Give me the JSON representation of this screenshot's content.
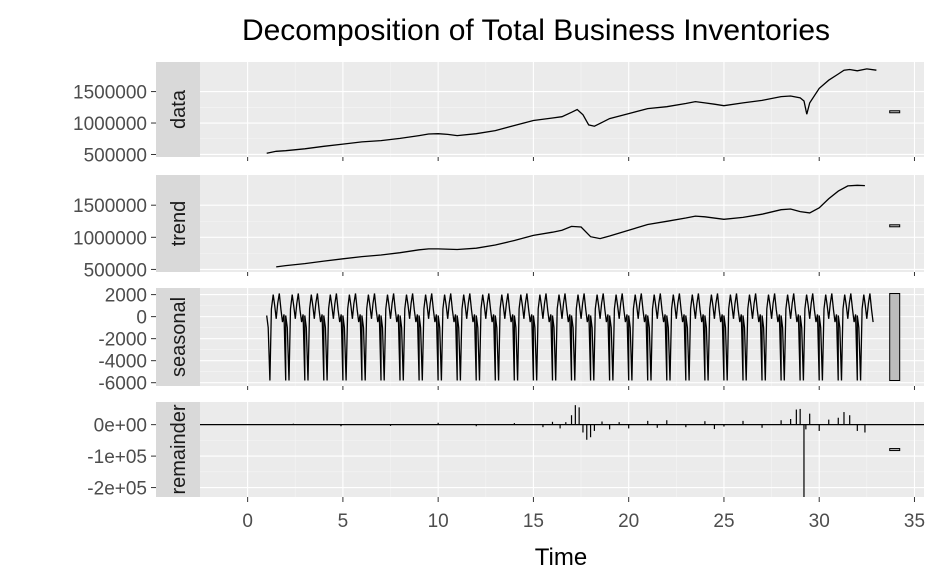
{
  "chart_data": {
    "type": "line",
    "title": "Decomposition of Total Business Inventories",
    "xlabel": "Time",
    "xlim": [
      -2.5,
      35.5
    ],
    "x_ticks": [
      "0",
      "5",
      "10",
      "15",
      "20",
      "25",
      "30",
      "35"
    ],
    "x_tick_values": [
      0,
      5,
      10,
      15,
      20,
      25,
      30,
      35
    ],
    "grid": true,
    "panels": [
      {
        "name": "data",
        "ylim": [
          460000,
          1970000
        ],
        "y_ticks": [
          "500000",
          "1000000",
          "1500000"
        ],
        "y_tick_values": [
          500000,
          1000000,
          1500000
        ],
        "range_bar": [
          1180000,
          1195000
        ],
        "x": [
          1.0,
          1.5,
          2.0,
          3.0,
          4.0,
          5.0,
          6.0,
          7.0,
          8.0,
          9.0,
          9.5,
          10.0,
          10.5,
          11.0,
          12.0,
          13.0,
          14.0,
          15.0,
          16.0,
          16.5,
          17.0,
          17.3,
          17.6,
          17.9,
          18.2,
          18.6,
          19.0,
          20.0,
          21.0,
          22.0,
          23.0,
          23.5,
          24.0,
          24.5,
          25.0,
          26.0,
          27.0,
          28.0,
          28.5,
          29.0,
          29.2,
          29.35,
          29.5,
          30.0,
          30.5,
          31.0,
          31.3,
          31.6,
          32.0,
          32.5,
          33.0
        ],
        "values": [
          520000,
          550000,
          560000,
          590000,
          630000,
          665000,
          700000,
          720000,
          755000,
          800000,
          825000,
          830000,
          820000,
          800000,
          830000,
          880000,
          960000,
          1040000,
          1080000,
          1100000,
          1170000,
          1215000,
          1130000,
          970000,
          950000,
          1010000,
          1070000,
          1150000,
          1230000,
          1260000,
          1310000,
          1340000,
          1320000,
          1300000,
          1275000,
          1320000,
          1360000,
          1420000,
          1430000,
          1400000,
          1350000,
          1140000,
          1320000,
          1550000,
          1680000,
          1780000,
          1840000,
          1850000,
          1830000,
          1860000,
          1840000
        ]
      },
      {
        "name": "trend",
        "ylim": [
          460000,
          1970000
        ],
        "y_ticks": [
          "500000",
          "1000000",
          "1500000"
        ],
        "y_tick_values": [
          500000,
          1000000,
          1500000
        ],
        "range_bar": [
          1180000,
          1195000
        ],
        "x": [
          1.5,
          2.0,
          3.0,
          4.0,
          5.0,
          6.0,
          7.0,
          8.0,
          9.0,
          9.5,
          10.0,
          11.0,
          12.0,
          13.0,
          14.0,
          15.0,
          16.0,
          16.5,
          17.0,
          17.5,
          18.0,
          18.5,
          19.0,
          20.0,
          21.0,
          22.0,
          23.0,
          23.5,
          24.0,
          25.0,
          26.0,
          27.0,
          28.0,
          28.5,
          29.0,
          29.5,
          30.0,
          30.5,
          31.0,
          31.5,
          32.0,
          32.4
        ],
        "values": [
          540000,
          560000,
          590000,
          630000,
          665000,
          700000,
          725000,
          760000,
          805000,
          820000,
          820000,
          810000,
          830000,
          880000,
          950000,
          1030000,
          1080000,
          1110000,
          1170000,
          1160000,
          1010000,
          980000,
          1020000,
          1110000,
          1200000,
          1250000,
          1300000,
          1330000,
          1320000,
          1280000,
          1310000,
          1360000,
          1430000,
          1440000,
          1400000,
          1380000,
          1460000,
          1600000,
          1720000,
          1800000,
          1810000,
          1805000
        ]
      },
      {
        "name": "seasonal",
        "ylim": [
          -6300,
          2600
        ],
        "y_ticks": [
          "2000",
          "0",
          "-2000",
          "-4000",
          "-6000"
        ],
        "y_tick_values": [
          2000,
          0,
          -2000,
          -4000,
          -6000
        ],
        "range_bar": [
          -5800,
          2100
        ],
        "period": 1,
        "start": 1.0,
        "end": 32.9,
        "cycle_x": [
          0.0,
          0.08,
          0.17,
          0.25,
          0.34,
          0.42,
          0.5,
          0.58,
          0.66,
          0.75,
          0.83,
          0.91,
          0.999
        ],
        "cycle_values": [
          100,
          -1000,
          -5800,
          700,
          2000,
          1000,
          -200,
          1200,
          2100,
          600,
          -500,
          200,
          -5800
        ]
      },
      {
        "name": "remainder",
        "ylim": [
          -230000,
          72000
        ],
        "y_ticks": [
          "0e+00",
          "-1e+05",
          "-2e+05"
        ],
        "y_tick_values": [
          0,
          -100000,
          -200000
        ],
        "range_bar": [
          -82000,
          -76000
        ],
        "x": [
          2.4,
          4.9,
          7.5,
          10.0,
          12.0,
          14.0,
          15.5,
          16.0,
          16.4,
          16.7,
          17.0,
          17.2,
          17.4,
          17.6,
          17.8,
          18.0,
          18.2,
          18.6,
          19.0,
          19.5,
          20.0,
          21.0,
          21.5,
          22.0,
          23.0,
          24.0,
          24.5,
          25.0,
          26.0,
          27.0,
          28.0,
          28.5,
          28.8,
          29.0,
          29.2,
          29.3,
          29.5,
          30.0,
          30.5,
          31.0,
          31.3,
          31.6,
          32.0,
          32.4
        ],
        "values": [
          3000,
          -5000,
          -4000,
          6000,
          -5000,
          5000,
          -8000,
          9000,
          -12000,
          8000,
          30000,
          62000,
          55000,
          -25000,
          -48000,
          -40000,
          -20000,
          10000,
          -15000,
          8000,
          -12000,
          12000,
          -10000,
          14000,
          -8000,
          11000,
          -14000,
          -6000,
          12000,
          -10000,
          14000,
          18000,
          48000,
          50000,
          -230000,
          -15000,
          35000,
          -20000,
          16000,
          22000,
          40000,
          30000,
          -20000,
          -25000
        ]
      }
    ]
  }
}
